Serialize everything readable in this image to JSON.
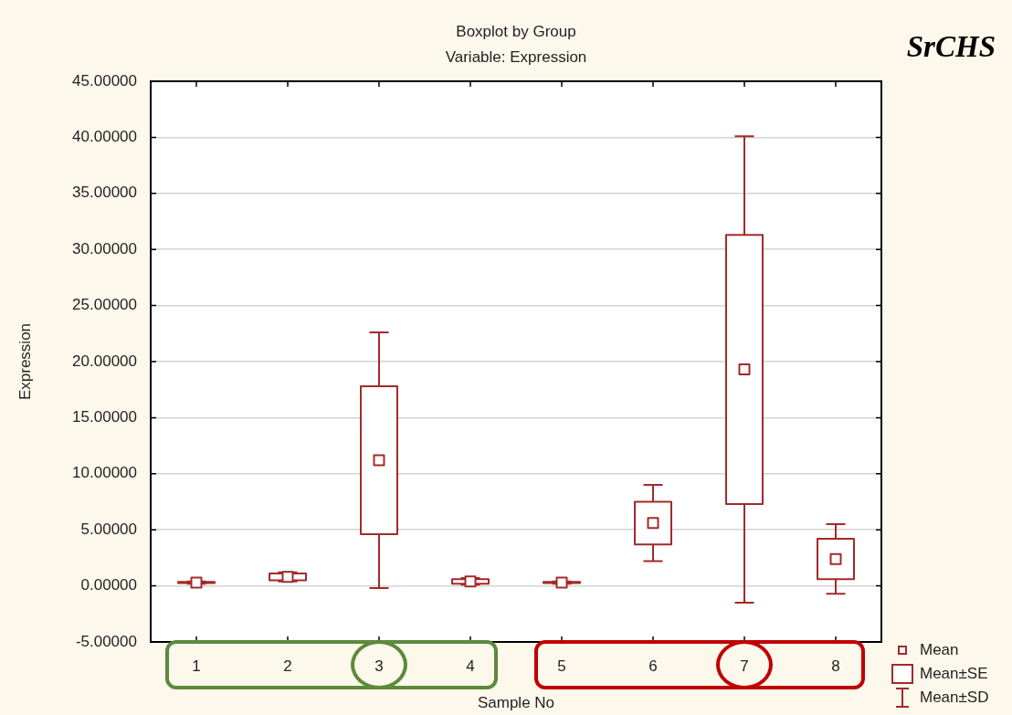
{
  "chart_data": {
    "type": "box",
    "title": "Boxplot by Group",
    "subtitle": "Variable: Expression",
    "xlabel": "Sample No",
    "ylabel": "Expression",
    "annotations": [
      "SrCHS",
      "Mean",
      "Mean±SE",
      "Mean±SD"
    ],
    "categories": [
      "1",
      "2",
      "3",
      "4",
      "5",
      "6",
      "7",
      "8"
    ],
    "color": "#a32a2a",
    "boxes": [
      {
        "low": 0.2,
        "q1": 0.25,
        "q3": 0.35,
        "high": 0.4,
        "mean": 0.3
      },
      {
        "low": 0.4,
        "q1": 0.5,
        "q3": 1.1,
        "high": 1.2,
        "mean": 0.8
      },
      {
        "low": -0.2,
        "q1": 4.6,
        "q3": 17.8,
        "high": 22.6,
        "mean": 11.2
      },
      {
        "low": 0.1,
        "q1": 0.2,
        "q3": 0.6,
        "high": 0.7,
        "mean": 0.4
      },
      {
        "low": 0.2,
        "q1": 0.25,
        "q3": 0.35,
        "high": 0.4,
        "mean": 0.3
      },
      {
        "low": 2.2,
        "q1": 3.7,
        "q3": 7.5,
        "high": 9.0,
        "mean": 5.6
      },
      {
        "low": -1.5,
        "q1": 7.3,
        "q3": 31.3,
        "high": 40.1,
        "mean": 19.3
      },
      {
        "low": -0.7,
        "q1": 0.6,
        "q3": 4.2,
        "high": 5.5,
        "mean": 2.4
      }
    ],
    "ylim": [
      -5,
      45
    ],
    "yticks": [
      {
        "value": -5,
        "label": "-5.00000"
      },
      {
        "value": 0,
        "label": "0.00000"
      },
      {
        "value": 5,
        "label": "5.00000"
      },
      {
        "value": 10,
        "label": "10.00000"
      },
      {
        "value": 15,
        "label": "15.00000"
      },
      {
        "value": 20,
        "label": "20.00000"
      },
      {
        "value": 25,
        "label": "25.00000"
      },
      {
        "value": 30,
        "label": "30.00000"
      },
      {
        "value": 35,
        "label": "35.00000"
      },
      {
        "value": 40,
        "label": "40.00000"
      },
      {
        "value": 45,
        "label": "45.00000"
      }
    ],
    "grid": "y"
  }
}
